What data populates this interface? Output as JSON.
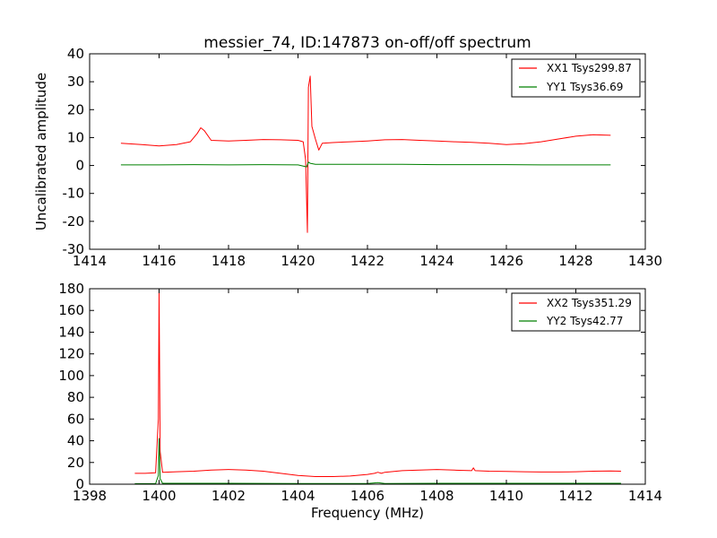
{
  "colors": {
    "xx": "#ff0000",
    "yy": "#008000",
    "axis": "#000000"
  },
  "chart_data": [
    {
      "type": "line",
      "title": "messier_74, ID:147873 on-off/off spectrum",
      "xlabel": "",
      "ylabel": "Uncalibrated amplitude",
      "xlim": [
        1414,
        1430
      ],
      "ylim": [
        -30,
        40
      ],
      "xticks": [
        1414,
        1416,
        1418,
        1420,
        1422,
        1424,
        1426,
        1428,
        1430
      ],
      "yticks": [
        -30,
        -20,
        -10,
        0,
        10,
        20,
        30,
        40
      ],
      "legend_position": "top-right",
      "series": [
        {
          "name": "XX1 Tsys299.87",
          "color": "#ff0000",
          "x": [
            1414.9,
            1415.5,
            1416.0,
            1416.5,
            1416.9,
            1417.1,
            1417.2,
            1417.3,
            1417.5,
            1418.0,
            1418.5,
            1419.0,
            1419.5,
            1420.0,
            1420.15,
            1420.22,
            1420.27,
            1420.3,
            1420.35,
            1420.4,
            1420.5,
            1420.6,
            1420.7,
            1421.0,
            1421.5,
            1422.0,
            1422.5,
            1423.0,
            1423.5,
            1424.0,
            1424.5,
            1425.0,
            1425.5,
            1426.0,
            1426.5,
            1427.0,
            1427.5,
            1428.0,
            1428.5,
            1429.0
          ],
          "values": [
            8.0,
            7.5,
            7.0,
            7.5,
            8.5,
            11.5,
            13.5,
            12.5,
            9.0,
            8.8,
            9.0,
            9.3,
            9.2,
            9.0,
            8.5,
            2.0,
            -24.0,
            28.0,
            32.0,
            14.0,
            9.5,
            5.5,
            8.0,
            8.2,
            8.5,
            8.8,
            9.2,
            9.3,
            9.0,
            8.8,
            8.5,
            8.3,
            8.0,
            7.5,
            7.8,
            8.5,
            9.5,
            10.5,
            11.0,
            10.8
          ]
        },
        {
          "name": "YY1 Tsys36.69",
          "color": "#008000",
          "x": [
            1414.9,
            1416.0,
            1417.0,
            1418.0,
            1419.0,
            1420.0,
            1420.25,
            1420.3,
            1420.35,
            1420.5,
            1421.0,
            1422.0,
            1423.0,
            1424.0,
            1425.0,
            1426.0,
            1427.0,
            1428.0,
            1429.0
          ],
          "values": [
            0.2,
            0.2,
            0.3,
            0.2,
            0.3,
            0.2,
            -0.5,
            1.2,
            0.8,
            0.4,
            0.4,
            0.4,
            0.4,
            0.3,
            0.3,
            0.3,
            0.2,
            0.2,
            0.2
          ]
        }
      ]
    },
    {
      "type": "line",
      "title": "",
      "xlabel": "Frequency (MHz)",
      "ylabel": "",
      "xlim": [
        1398,
        1414
      ],
      "ylim": [
        0,
        180
      ],
      "xticks": [
        1398,
        1400,
        1402,
        1404,
        1406,
        1408,
        1410,
        1412,
        1414
      ],
      "yticks": [
        0,
        20,
        40,
        60,
        80,
        100,
        120,
        140,
        160,
        180
      ],
      "legend_position": "top-right",
      "series": [
        {
          "name": "XX2 Tsys351.29",
          "color": "#ff0000",
          "x": [
            1399.3,
            1399.6,
            1399.9,
            1399.98,
            1400.0,
            1400.03,
            1400.1,
            1400.5,
            1401.0,
            1401.5,
            1402.0,
            1402.5,
            1403.0,
            1403.5,
            1404.0,
            1404.5,
            1405.0,
            1405.5,
            1406.0,
            1406.2,
            1406.3,
            1406.4,
            1406.5,
            1407.0,
            1407.5,
            1408.0,
            1408.5,
            1409.0,
            1409.05,
            1409.1,
            1409.5,
            1410.0,
            1410.5,
            1411.0,
            1411.5,
            1412.0,
            1412.5,
            1413.0,
            1413.3
          ],
          "values": [
            10,
            10,
            10.5,
            60,
            180,
            30,
            11,
            11.5,
            12,
            13,
            13.5,
            13,
            12,
            10,
            8,
            7,
            7,
            7.5,
            9,
            10,
            11,
            10,
            11,
            12.5,
            13,
            13.5,
            13,
            12.5,
            15,
            12.5,
            12,
            11.8,
            11.5,
            11.2,
            11.2,
            11.5,
            12,
            12.2,
            12
          ]
        },
        {
          "name": "YY2 Tsys42.77",
          "color": "#008000",
          "x": [
            1399.3,
            1399.9,
            1399.98,
            1400.0,
            1400.03,
            1400.1,
            1402.0,
            1404.0,
            1406.0,
            1406.3,
            1406.5,
            1408.0,
            1410.0,
            1412.0,
            1413.3
          ],
          "values": [
            0.5,
            0.5,
            8,
            42,
            5,
            0.8,
            0.8,
            0.7,
            0.7,
            1.5,
            0.7,
            0.8,
            0.8,
            0.8,
            0.8
          ]
        }
      ]
    }
  ]
}
